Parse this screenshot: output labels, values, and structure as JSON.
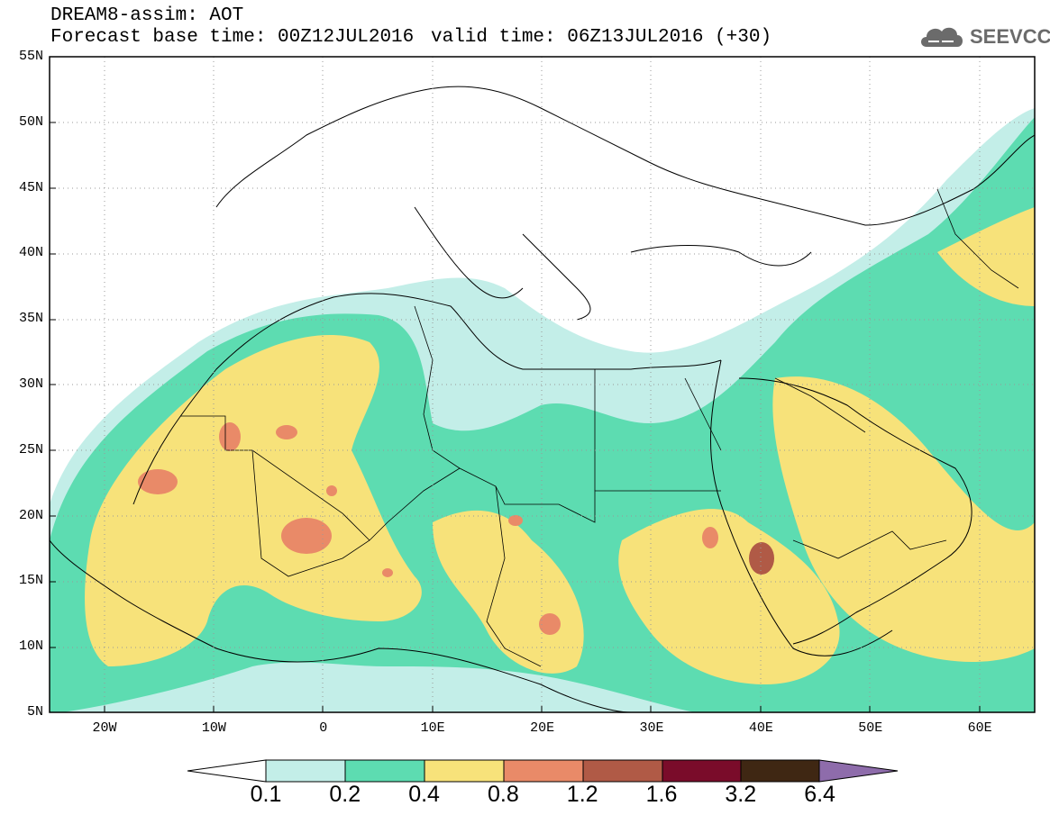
{
  "title": {
    "line1": "DREAM8-assim: AOT",
    "line2": "Forecast base time: 00Z12JUL2016",
    "valid": "valid time: 06Z13JUL2016 (+30)"
  },
  "logo": {
    "text": "SEEVCCC",
    "icon": "cloud-icon"
  },
  "map": {
    "lon_range": [
      -25,
      65
    ],
    "lat_range": [
      5,
      55
    ],
    "lat_ticks": [
      "55N",
      "50N",
      "45N",
      "40N",
      "35N",
      "30N",
      "25N",
      "20N",
      "15N",
      "10N",
      "5N"
    ],
    "lon_ticks": [
      "20W",
      "10W",
      "0",
      "10E",
      "20E",
      "30E",
      "40E",
      "50E",
      "60E"
    ],
    "grid": "dotted"
  },
  "colorbar": {
    "labels": [
      "0.1",
      "0.2",
      "0.4",
      "0.8",
      "1.2",
      "1.6",
      "3.2",
      "6.4"
    ],
    "colors": [
      "#ffffff",
      "#c3eee8",
      "#5ddcb1",
      "#f7e27a",
      "#e98a68",
      "#b05a46",
      "#7a0c2a",
      "#3f2713",
      "#8e6cab"
    ]
  }
}
